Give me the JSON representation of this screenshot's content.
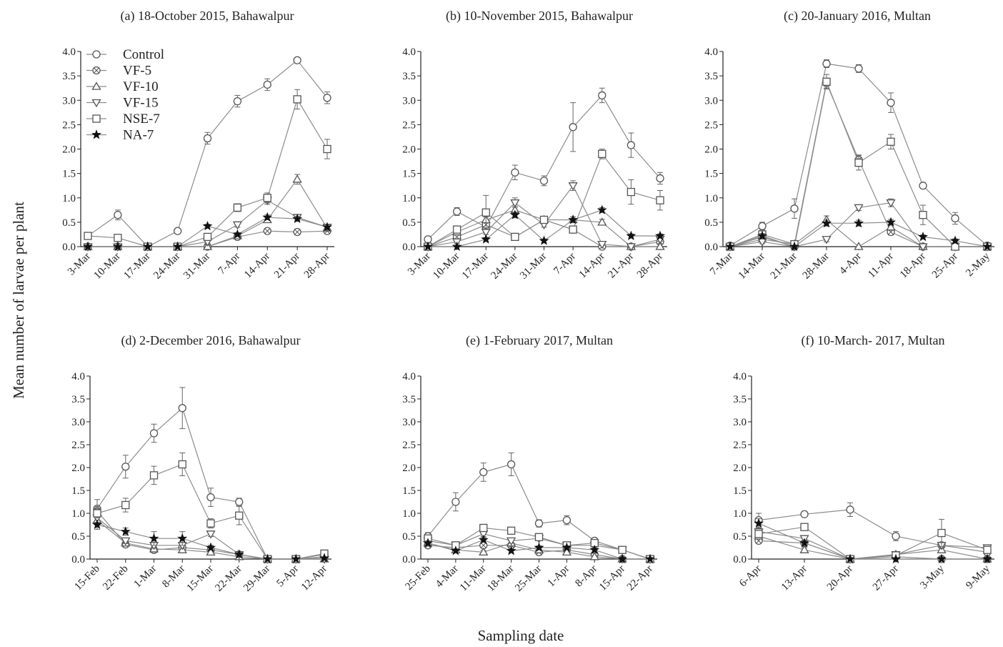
{
  "figure": {
    "ylabel": "Mean number of larvae per plant",
    "xlabel": "Sampling date"
  },
  "legend": [
    {
      "name": "Control",
      "marker": "circle"
    },
    {
      "name": "VF-5",
      "marker": "circle-x"
    },
    {
      "name": "VF-10",
      "marker": "triangle-up"
    },
    {
      "name": "VF-15",
      "marker": "triangle-down"
    },
    {
      "name": "NSE-7",
      "marker": "square"
    },
    {
      "name": "NA-7",
      "marker": "star"
    }
  ],
  "colors": {
    "line": "#8c8c8c",
    "marker_stroke": "#555555",
    "star_fill": "#111111",
    "axis": "#222222"
  },
  "chart_data": [
    {
      "type": "line",
      "title": "(a) 18-October 2015, Bahawalpur",
      "ylim": [
        0,
        4
      ],
      "yticks": [
        "0.0",
        "0.5",
        "1.0",
        "1.5",
        "2.0",
        "2.5",
        "3.0",
        "3.5",
        "4.0"
      ],
      "categories": [
        "3-Mar",
        "10-Mar",
        "17-Mar",
        "24-Mar",
        "31-Mar",
        "7-Apr",
        "14-Apr",
        "21-Apr",
        "28-Apr"
      ],
      "series": [
        {
          "name": "Control",
          "values": [
            0.22,
            0.65,
            0.0,
            0.32,
            2.22,
            2.98,
            3.32,
            3.82,
            3.05
          ],
          "err": [
            0.04,
            0.1,
            0,
            0.05,
            0.12,
            0.12,
            0.12,
            0.05,
            0.12
          ]
        },
        {
          "name": "VF-5",
          "values": [
            0.0,
            0.0,
            0.0,
            0.0,
            0.0,
            0.2,
            0.32,
            0.3,
            0.32
          ],
          "err": [
            0,
            0,
            0,
            0,
            0,
            0.04,
            0.05,
            0.05,
            0.05
          ]
        },
        {
          "name": "VF-10",
          "values": [
            0.0,
            0.0,
            0.0,
            0.0,
            0.0,
            0.22,
            0.55,
            1.38,
            0.38
          ],
          "err": [
            0,
            0,
            0,
            0,
            0,
            0.04,
            0.06,
            0.1,
            0.05
          ]
        },
        {
          "name": "VF-15",
          "values": [
            0.0,
            0.0,
            0.0,
            0.0,
            0.1,
            0.45,
            0.95,
            0.6,
            0.4
          ],
          "err": [
            0,
            0,
            0,
            0,
            0.03,
            0.05,
            0.08,
            0.06,
            0.05
          ]
        },
        {
          "name": "NSE-7",
          "values": [
            0.22,
            0.18,
            0.0,
            0.0,
            0.2,
            0.8,
            1.0,
            3.02,
            2.0
          ],
          "err": [
            0.04,
            0.03,
            0,
            0,
            0.04,
            0.08,
            0.1,
            0.2,
            0.2
          ]
        },
        {
          "name": "NA-7",
          "values": [
            0.0,
            0.0,
            0.0,
            0.0,
            0.42,
            0.25,
            0.6,
            0.57,
            0.4
          ],
          "err": [
            0,
            0,
            0,
            0,
            0.04,
            0.04,
            0.05,
            0.05,
            0.05
          ]
        }
      ]
    },
    {
      "type": "line",
      "title": "(b) 10-November 2015, Bahawalpur",
      "ylim": [
        0,
        4
      ],
      "yticks": [
        "0.0",
        "0.5",
        "1.0",
        "1.5",
        "2.0",
        "2.5",
        "3.0",
        "3.5",
        "4.0"
      ],
      "categories": [
        "3-Mar",
        "10-Mar",
        "17-Mar",
        "24-Mar",
        "31-Mar",
        "7-Apr",
        "14-Apr",
        "21-Apr",
        "28-Apr"
      ],
      "series": [
        {
          "name": "Control",
          "values": [
            0.15,
            0.72,
            0.4,
            1.52,
            1.35,
            2.45,
            3.1,
            2.08,
            1.4
          ],
          "err": [
            0.04,
            0.08,
            0.08,
            0.15,
            0.1,
            0.5,
            0.15,
            0.25,
            0.12
          ]
        },
        {
          "name": "VF-5",
          "values": [
            0.0,
            0.2,
            0.45,
            0.2,
            0.55,
            0.35,
            0.0,
            0.0,
            0.1
          ],
          "err": [
            0,
            0.05,
            0.06,
            0.05,
            0.06,
            0.05,
            0,
            0,
            0.04
          ]
        },
        {
          "name": "VF-10",
          "values": [
            0.0,
            0.3,
            0.55,
            0.75,
            0.55,
            0.55,
            0.5,
            0.0,
            0.0
          ],
          "err": [
            0,
            0.05,
            0.06,
            0.08,
            0.06,
            0.06,
            0.06,
            0,
            0
          ]
        },
        {
          "name": "VF-15",
          "values": [
            0.0,
            0.1,
            0.3,
            0.9,
            0.45,
            1.25,
            0.05,
            0.0,
            0.15
          ],
          "err": [
            0,
            0.04,
            0.05,
            0.1,
            0.05,
            0.1,
            0.03,
            0,
            0.04
          ]
        },
        {
          "name": "NSE-7",
          "values": [
            0.0,
            0.35,
            0.7,
            0.2,
            0.55,
            0.35,
            1.9,
            1.12,
            0.95
          ],
          "err": [
            0,
            0.06,
            0.35,
            0.05,
            0.06,
            0.05,
            0.1,
            0.25,
            0.2
          ]
        },
        {
          "name": "NA-7",
          "values": [
            0.0,
            0.0,
            0.15,
            0.65,
            0.12,
            0.55,
            0.75,
            0.22,
            0.22
          ],
          "err": [
            0,
            0,
            0.04,
            0.06,
            0.04,
            0.06,
            0.05,
            0.04,
            0.04
          ]
        }
      ]
    },
    {
      "type": "line",
      "title": "(c) 20-January 2016, Multan",
      "ylim": [
        0,
        4
      ],
      "yticks": [
        "0.0",
        "0.5",
        "1.0",
        "1.5",
        "2.0",
        "2.5",
        "3.0",
        "3.5",
        "4.0"
      ],
      "categories": [
        "7-Mar",
        "14-Mar",
        "21-Mar",
        "28-Mar",
        "4-Apr",
        "11-Apr",
        "18-Apr",
        "25-Apr",
        "2-May"
      ],
      "series": [
        {
          "name": "Control",
          "values": [
            0.02,
            0.42,
            0.78,
            3.75,
            3.65,
            2.95,
            1.25,
            0.58,
            0.02
          ],
          "err": [
            0.02,
            0.08,
            0.2,
            0.08,
            0.08,
            0.2,
            0.06,
            0.12,
            0.02
          ]
        },
        {
          "name": "VF-5",
          "values": [
            0.0,
            0.2,
            0.0,
            3.35,
            1.78,
            0.3,
            0.0,
            0.0,
            0.0
          ],
          "err": [
            0,
            0.05,
            0,
            0.1,
            0.1,
            0.06,
            0,
            0,
            0
          ]
        },
        {
          "name": "VF-10",
          "values": [
            0.0,
            0.15,
            0.05,
            0.55,
            0.0,
            0.4,
            0.0,
            0.0,
            0.0
          ],
          "err": [
            0,
            0.04,
            0.03,
            0.08,
            0,
            0.06,
            0,
            0,
            0
          ]
        },
        {
          "name": "VF-15",
          "values": [
            0.0,
            0.1,
            0.0,
            0.15,
            0.8,
            0.9,
            0.0,
            0.0,
            0.0
          ],
          "err": [
            0,
            0.04,
            0,
            0.05,
            0.06,
            0.08,
            0,
            0,
            0
          ]
        },
        {
          "name": "NSE-7",
          "values": [
            0.0,
            0.25,
            0.05,
            3.38,
            1.72,
            2.15,
            0.65,
            0.0,
            0.0
          ],
          "err": [
            0,
            0.05,
            0.03,
            0.15,
            0.15,
            0.15,
            0.2,
            0,
            0
          ]
        },
        {
          "name": "NA-7",
          "values": [
            0.0,
            0.22,
            0.0,
            0.48,
            0.48,
            0.5,
            0.2,
            0.12,
            0.0
          ],
          "err": [
            0,
            0.05,
            0,
            0.06,
            0.06,
            0.06,
            0.04,
            0.04,
            0
          ]
        }
      ]
    },
    {
      "type": "line",
      "title": "(d) 2-December 2016, Bahawalpur",
      "ylim": [
        0,
        4
      ],
      "yticks": [
        "0.0",
        "0.5",
        "1.0",
        "1.5",
        "2.0",
        "2.5",
        "3.0",
        "3.5",
        "4.0"
      ],
      "categories": [
        "15-Feb",
        "22-Feb",
        "1-Mar",
        "8-Mar",
        "15-Mar",
        "22-Mar",
        "29-Mar",
        "5-Apr",
        "12-Apr"
      ],
      "series": [
        {
          "name": "Control",
          "values": [
            1.1,
            2.02,
            2.75,
            3.3,
            1.35,
            1.25,
            0.0,
            0.0,
            0.1
          ],
          "err": [
            0.2,
            0.25,
            0.2,
            0.45,
            0.2,
            0.08,
            0,
            0,
            0.05
          ]
        },
        {
          "name": "VF-5",
          "values": [
            1.05,
            0.32,
            0.2,
            0.25,
            0.2,
            0.1,
            0.0,
            0.0,
            0.05
          ],
          "err": [
            0.1,
            0.05,
            0.05,
            0.05,
            0.05,
            0.04,
            0,
            0,
            0.03
          ]
        },
        {
          "name": "VF-10",
          "values": [
            0.85,
            0.35,
            0.22,
            0.2,
            0.15,
            0.05,
            0.0,
            0.0,
            0.0
          ],
          "err": [
            0.1,
            0.05,
            0.05,
            0.05,
            0.04,
            0.03,
            0,
            0,
            0
          ]
        },
        {
          "name": "VF-15",
          "values": [
            0.9,
            0.4,
            0.3,
            0.3,
            0.55,
            0.1,
            0.0,
            0.0,
            0.0
          ],
          "err": [
            0.1,
            0.06,
            0.05,
            0.05,
            0.06,
            0.04,
            0,
            0,
            0
          ]
        },
        {
          "name": "NSE-7",
          "values": [
            1.0,
            1.18,
            1.83,
            2.07,
            0.78,
            0.95,
            0.0,
            0.0,
            0.12
          ],
          "err": [
            0.1,
            0.15,
            0.2,
            0.25,
            0.1,
            0.2,
            0,
            0,
            0.05
          ]
        },
        {
          "name": "NA-7",
          "values": [
            0.75,
            0.6,
            0.45,
            0.45,
            0.25,
            0.1,
            0.0,
            0.0,
            0.02
          ],
          "err": [
            0.1,
            0.08,
            0.15,
            0.15,
            0.05,
            0.04,
            0,
            0,
            0.02
          ]
        }
      ]
    },
    {
      "type": "line",
      "title": "(e) 1-February 2017, Multan",
      "ylim": [
        0,
        4
      ],
      "yticks": [
        "0.0",
        "0.5",
        "1.0",
        "1.5",
        "2.0",
        "2.5",
        "3.0",
        "3.5",
        "4.0"
      ],
      "categories": [
        "25-Feb",
        "4-Mar",
        "11-Mar",
        "18-Mar",
        "25-Mar",
        "1-Apr",
        "8-Apr",
        "15-Apr",
        "22-Apr"
      ],
      "series": [
        {
          "name": "Control",
          "values": [
            0.5,
            1.25,
            1.9,
            2.07,
            0.78,
            0.85,
            0.4,
            0.2,
            0.0
          ],
          "err": [
            0.08,
            0.2,
            0.2,
            0.25,
            0.08,
            0.1,
            0.05,
            0.04,
            0
          ]
        },
        {
          "name": "VF-5",
          "values": [
            0.3,
            0.25,
            0.3,
            0.3,
            0.15,
            0.2,
            0.1,
            0.0,
            0.0
          ],
          "err": [
            0.05,
            0.05,
            0.05,
            0.05,
            0.04,
            0.04,
            0.03,
            0,
            0
          ]
        },
        {
          "name": "VF-10",
          "values": [
            0.35,
            0.2,
            0.15,
            0.35,
            0.2,
            0.15,
            0.05,
            0.0,
            0.0
          ],
          "err": [
            0.05,
            0.04,
            0.04,
            0.05,
            0.04,
            0.04,
            0.03,
            0,
            0
          ]
        },
        {
          "name": "VF-15",
          "values": [
            0.4,
            0.3,
            0.55,
            0.4,
            0.45,
            0.3,
            0.3,
            0.2,
            0.0
          ],
          "err": [
            0.05,
            0.05,
            0.06,
            0.05,
            0.05,
            0.05,
            0.05,
            0.04,
            0
          ]
        },
        {
          "name": "NSE-7",
          "values": [
            0.45,
            0.3,
            0.68,
            0.62,
            0.48,
            0.3,
            0.35,
            0.2,
            0.0
          ],
          "err": [
            0.06,
            0.05,
            0.08,
            0.06,
            0.06,
            0.05,
            0.05,
            0.04,
            0
          ]
        },
        {
          "name": "NA-7",
          "values": [
            0.35,
            0.18,
            0.42,
            0.18,
            0.25,
            0.25,
            0.2,
            0.0,
            0.0
          ],
          "err": [
            0.05,
            0.04,
            0.05,
            0.04,
            0.04,
            0.04,
            0.04,
            0,
            0
          ]
        }
      ]
    },
    {
      "type": "line",
      "title": "(f) 10-March- 2017, Multan",
      "ylim": [
        0,
        4
      ],
      "yticks": [
        "0.0",
        "0.5",
        "1.0",
        "1.5",
        "2.0",
        "2.5",
        "3.0",
        "3.5",
        "4.0"
      ],
      "categories": [
        "6-Apr",
        "13-Apr",
        "20-Apr",
        "27-Apr",
        "3-May",
        "9-May"
      ],
      "series": [
        {
          "name": "Control",
          "values": [
            0.85,
            0.98,
            1.08,
            0.5,
            0.3,
            0.15
          ],
          "err": [
            0.15,
            0.05,
            0.15,
            0.1,
            0.06,
            0.04
          ]
        },
        {
          "name": "VF-5",
          "values": [
            0.4,
            0.35,
            0.0,
            0.05,
            0.0,
            0.0
          ],
          "err": [
            0.05,
            0.05,
            0,
            0.03,
            0,
            0
          ]
        },
        {
          "name": "VF-10",
          "values": [
            0.5,
            0.2,
            0.0,
            0.1,
            0.2,
            0.0
          ],
          "err": [
            0.06,
            0.05,
            0,
            0.04,
            0.05,
            0
          ]
        },
        {
          "name": "VF-15",
          "values": [
            0.6,
            0.45,
            0.0,
            0.1,
            0.3,
            0.25
          ],
          "err": [
            0.06,
            0.05,
            0,
            0.04,
            0.05,
            0.05
          ]
        },
        {
          "name": "NSE-7",
          "values": [
            0.55,
            0.7,
            0.0,
            0.08,
            0.57,
            0.2
          ],
          "err": [
            0.06,
            0.06,
            0,
            0.04,
            0.3,
            0.05
          ]
        },
        {
          "name": "NA-7",
          "values": [
            0.78,
            0.35,
            0.0,
            0.0,
            0.0,
            0.0
          ],
          "err": [
            0.1,
            0.05,
            0,
            0,
            0,
            0
          ]
        }
      ]
    }
  ]
}
